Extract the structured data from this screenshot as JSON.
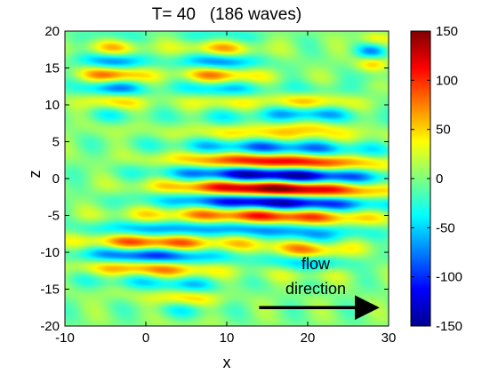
{
  "chart_data": {
    "type": "heatmap",
    "title": "T= 40   (186 waves)",
    "xlabel": "x",
    "ylabel": "z",
    "xlim": [
      -10,
      30
    ],
    "ylim": [
      -20,
      20
    ],
    "x_ticks": [
      -10,
      0,
      10,
      20,
      30
    ],
    "y_ticks": [
      -20,
      -15,
      -10,
      -5,
      0,
      5,
      10,
      15,
      20
    ],
    "colorbar": {
      "range": [
        -150,
        150
      ],
      "ticks": [
        -150,
        -100,
        -50,
        0,
        50,
        100,
        150
      ],
      "colormap": "jet"
    },
    "annotation": {
      "text_line1": "flow",
      "text_line2": "direction",
      "arrow_from": [
        14,
        -17.5
      ],
      "arrow_to": [
        28.5,
        -17.5
      ]
    },
    "field": {
      "wavelength_z": 3.8,
      "main_packet": {
        "x_center": 16,
        "x_halfwidth": 12,
        "z_center": -1,
        "z_halfwidth": 6.5,
        "amplitude": 150
      },
      "secondary_packets": [
        {
          "x_center": -4,
          "z_center": 14,
          "x_halfwidth": 4,
          "z_halfwidth": 5,
          "amplitude": 80
        },
        {
          "x_center": 9,
          "z_center": 15,
          "x_halfwidth": 5,
          "z_halfwidth": 5,
          "amplitude": 70
        },
        {
          "x_center": 20,
          "z_center": 9,
          "x_halfwidth": 6,
          "z_halfwidth": 3,
          "amplitude": 60
        },
        {
          "x_center": 0,
          "z_center": -10,
          "x_halfwidth": 8,
          "z_halfwidth": 4,
          "amplitude": 90
        },
        {
          "x_center": 20,
          "z_center": -10,
          "x_halfwidth": 5,
          "z_halfwidth": 3,
          "amplitude": 55
        },
        {
          "x_center": 5,
          "z_center": -16,
          "x_halfwidth": 4,
          "z_halfwidth": 3,
          "amplitude": 40
        },
        {
          "x_center": 28,
          "z_center": 17,
          "x_halfwidth": 2,
          "z_halfwidth": 3,
          "amplitude": 60
        }
      ]
    }
  }
}
